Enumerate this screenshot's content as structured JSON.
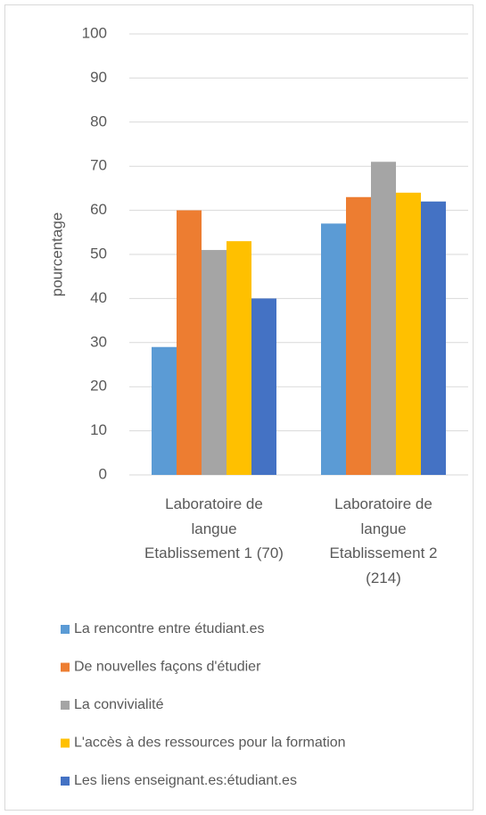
{
  "chart_data": {
    "type": "bar",
    "y_label": "pourcentage",
    "categories": [
      "Laboratoire de langue Etablissement 1 (70)",
      "Laboratoire de langue Etablissement 2 (214)"
    ],
    "series": [
      {
        "name": "La rencontre entre étudiant.es",
        "color": "#5b9bd5",
        "values": [
          29,
          57
        ]
      },
      {
        "name": "De nouvelles façons d'étudier",
        "color": "#ed7d31",
        "values": [
          60,
          63
        ]
      },
      {
        "name": "La convivialité",
        "color": "#a5a5a5",
        "values": [
          51,
          71
        ]
      },
      {
        "name": "L'accès à des ressources pour la formation",
        "color": "#ffc000",
        "values": [
          53,
          64
        ]
      },
      {
        "name": "Les liens enseignant.es:étudiant.es",
        "color": "#4472c4",
        "values": [
          40,
          62
        ]
      }
    ],
    "ylim": [
      0,
      100
    ],
    "yticks": [
      0,
      10,
      20,
      30,
      40,
      50,
      60,
      70,
      80,
      90,
      100
    ],
    "grid": true,
    "legend": "bottom"
  }
}
